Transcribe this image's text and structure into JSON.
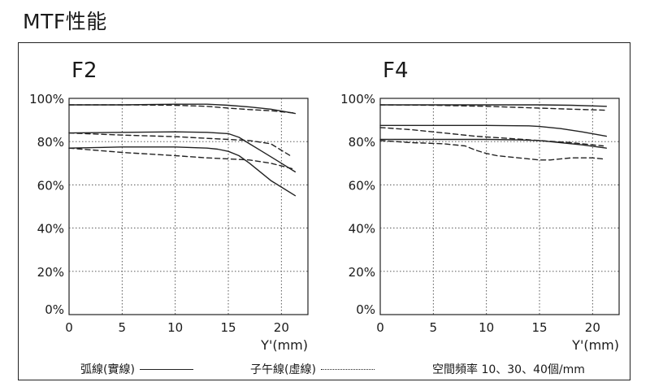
{
  "page_title": "MTF性能",
  "legend": {
    "sagittal_label": "弧線(實線)",
    "meridional_label": "子午線(虛線)",
    "frequencies_label": "空間頻率 10、30、40個/mm"
  },
  "colors": {
    "line": "#222222",
    "frame": "#222222"
  },
  "chart_data": [
    {
      "type": "line",
      "title": "F2",
      "xlabel": "Y'(mm)",
      "ylabel": "",
      "xlim": [
        0,
        22.5
      ],
      "ylim": [
        0,
        100
      ],
      "x_ticks": [
        0,
        5,
        10,
        15,
        20
      ],
      "y_ticks": [
        0,
        20,
        40,
        60,
        80,
        100
      ],
      "y_tick_labels": [
        "0%",
        "20%",
        "40%",
        "60%",
        "80%",
        "100%"
      ],
      "grid": true,
      "series": [
        {
          "style": "solid",
          "x": [
            0,
            5,
            10,
            13,
            15,
            17,
            19,
            21.3
          ],
          "y": [
            97,
            97,
            97.3,
            97.3,
            96.8,
            96,
            95,
            93
          ]
        },
        {
          "style": "dashed",
          "x": [
            0,
            5,
            10,
            13,
            15,
            17,
            19,
            21.3
          ],
          "y": [
            97,
            97,
            96.8,
            96.3,
            95.5,
            94.8,
            94.3,
            93.2
          ]
        },
        {
          "style": "solid",
          "x": [
            0,
            5,
            10,
            13,
            15,
            16,
            17,
            18,
            19,
            20,
            21.3
          ],
          "y": [
            84,
            84.3,
            84.5,
            84.3,
            83.7,
            82,
            79,
            76,
            73,
            70,
            66
          ]
        },
        {
          "style": "dashed",
          "x": [
            0,
            5,
            10,
            13,
            15,
            17,
            19,
            21
          ],
          "y": [
            84,
            83,
            82.3,
            81.5,
            81,
            80.5,
            79,
            73
          ]
        },
        {
          "style": "solid",
          "x": [
            0,
            5,
            10,
            13,
            14,
            15,
            16,
            17,
            18,
            19,
            20,
            21.3
          ],
          "y": [
            77,
            77.5,
            77.5,
            77,
            76.5,
            75.5,
            73.5,
            70,
            66,
            62,
            59,
            55
          ]
        },
        {
          "style": "dashed",
          "x": [
            0,
            5,
            10,
            13,
            15,
            17,
            19,
            21
          ],
          "y": [
            77,
            75,
            73.5,
            72.5,
            72,
            71.5,
            70,
            67.5
          ]
        }
      ]
    },
    {
      "type": "line",
      "title": "F4",
      "xlabel": "Y'(mm)",
      "ylabel": "",
      "xlim": [
        0,
        22.5
      ],
      "ylim": [
        0,
        100
      ],
      "x_ticks": [
        0,
        5,
        10,
        15,
        20
      ],
      "y_ticks": [
        0,
        20,
        40,
        60,
        80,
        100
      ],
      "y_tick_labels": [
        "0%",
        "20%",
        "40%",
        "60%",
        "80%",
        "100%"
      ],
      "grid": true,
      "series": [
        {
          "style": "solid",
          "x": [
            0,
            5,
            10,
            15,
            18,
            21.3
          ],
          "y": [
            97,
            97,
            97,
            97,
            96.8,
            96.3
          ]
        },
        {
          "style": "dashed",
          "x": [
            0,
            5,
            10,
            15,
            18,
            21.3
          ],
          "y": [
            97,
            96.8,
            96.3,
            95.5,
            95,
            94.5
          ]
        },
        {
          "style": "solid",
          "x": [
            0,
            5,
            10,
            14,
            15,
            17,
            19,
            21.3
          ],
          "y": [
            87.5,
            87.5,
            87.5,
            87.3,
            87,
            86,
            84.5,
            82.5
          ]
        },
        {
          "style": "dashed",
          "x": [
            0,
            3,
            6,
            9,
            12,
            15,
            18,
            21
          ],
          "y": [
            86.5,
            85.5,
            84,
            82.5,
            81.5,
            80.5,
            79.5,
            78
          ]
        },
        {
          "style": "solid",
          "x": [
            0,
            5,
            10,
            13,
            15,
            17,
            19,
            21.3
          ],
          "y": [
            81,
            81,
            81,
            80.8,
            80.5,
            79.5,
            78.5,
            77
          ]
        },
        {
          "style": "dashed",
          "x": [
            0,
            3,
            6,
            8,
            9,
            10,
            11,
            13,
            15,
            16,
            18,
            20,
            21
          ],
          "y": [
            80.5,
            79.5,
            79,
            78,
            76,
            74.5,
            73.5,
            72.5,
            71.5,
            71.5,
            72.5,
            72.5,
            72
          ]
        }
      ]
    }
  ]
}
